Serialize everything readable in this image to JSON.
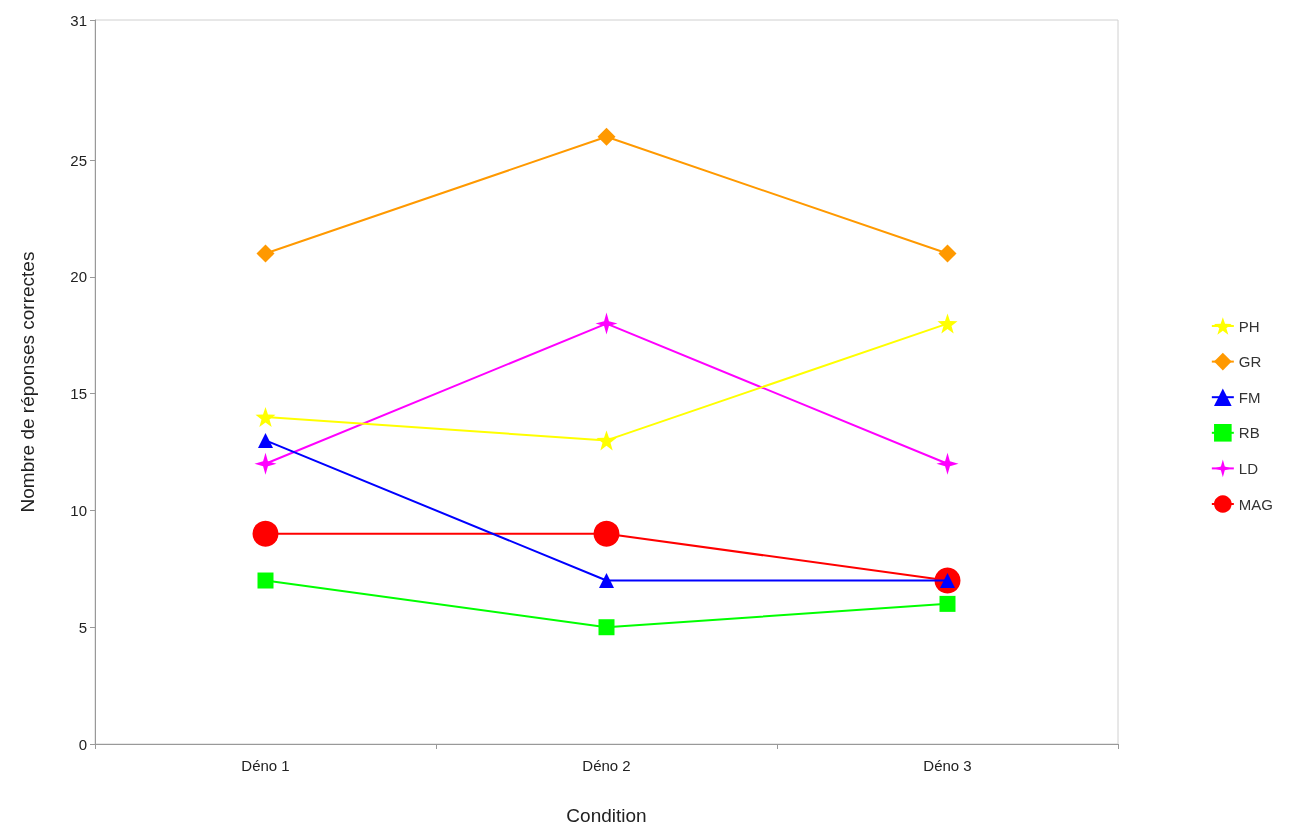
{
  "chart_data": {
    "type": "line",
    "xlabel": "Condition",
    "ylabel": "Nombre de réponses correctes",
    "categories": [
      "Déno 1",
      "Déno 2",
      "Déno 3"
    ],
    "ylim": [
      0,
      31
    ],
    "yticks": [
      0,
      5,
      10,
      15,
      20,
      25,
      31
    ],
    "grid": false,
    "legend": "right",
    "series": [
      {
        "name": "PH",
        "color": "#ffff00",
        "marker": "star",
        "values": [
          14,
          13,
          18
        ]
      },
      {
        "name": "GR",
        "color": "#ff9900",
        "marker": "diamond",
        "values": [
          21,
          26,
          21
        ]
      },
      {
        "name": "FM",
        "color": "#0000ff",
        "marker": "triangle",
        "values": [
          13,
          7,
          7
        ]
      },
      {
        "name": "RB",
        "color": "#00ff00",
        "marker": "square",
        "values": [
          7,
          5,
          6
        ]
      },
      {
        "name": "LD",
        "color": "#ff00ff",
        "marker": "star4",
        "values": [
          12,
          18,
          12
        ]
      },
      {
        "name": "MAG",
        "color": "#ff0000",
        "marker": "circle",
        "values": [
          9,
          9,
          7
        ]
      }
    ]
  }
}
